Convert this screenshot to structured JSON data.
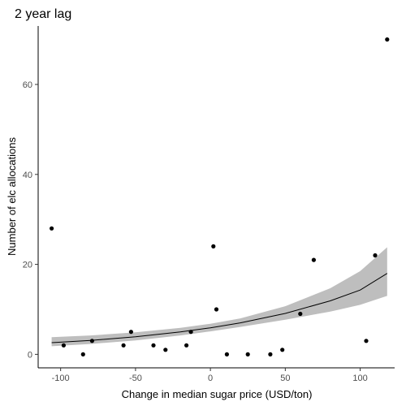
{
  "chart_data": {
    "type": "scatter",
    "title": "2 year lag",
    "xlabel": "Change in median sugar price (USD/ton)",
    "ylabel": "Number of elc allocations",
    "xlim": [
      -115,
      123
    ],
    "ylim": [
      -3,
      73
    ],
    "x_ticks": [
      -100,
      -50,
      0,
      50,
      100
    ],
    "y_ticks": [
      0,
      20,
      40,
      60
    ],
    "x_tick_labels": [
      "-100",
      "-50",
      "0",
      "50",
      "100"
    ],
    "y_tick_labels": [
      "0",
      "20",
      "40",
      "60"
    ],
    "grid": false,
    "legend": "none",
    "points": [
      {
        "x": -106,
        "y": 28
      },
      {
        "x": -98,
        "y": 2
      },
      {
        "x": -85,
        "y": 0
      },
      {
        "x": -79,
        "y": 3
      },
      {
        "x": -58,
        "y": 2
      },
      {
        "x": -53,
        "y": 5
      },
      {
        "x": -38,
        "y": 2
      },
      {
        "x": -30,
        "y": 1
      },
      {
        "x": -16,
        "y": 2
      },
      {
        "x": -13,
        "y": 5
      },
      {
        "x": 2,
        "y": 24
      },
      {
        "x": 4,
        "y": 10
      },
      {
        "x": 11,
        "y": 0
      },
      {
        "x": 25,
        "y": 0
      },
      {
        "x": 40,
        "y": 0
      },
      {
        "x": 48,
        "y": 1
      },
      {
        "x": 60,
        "y": 9
      },
      {
        "x": 69,
        "y": 21
      },
      {
        "x": 104,
        "y": 3
      },
      {
        "x": 110,
        "y": 22
      },
      {
        "x": 118,
        "y": 70
      }
    ],
    "fit": {
      "x": [
        -106,
        -80,
        -50,
        -20,
        0,
        20,
        50,
        80,
        100,
        118
      ],
      "y": [
        2.6,
        3.1,
        3.9,
        5.0,
        5.9,
        7.0,
        9.1,
        11.9,
        14.3,
        18.0
      ],
      "lower": [
        1.8,
        2.3,
        3.1,
        4.2,
        5.1,
        6.1,
        7.7,
        9.5,
        11.0,
        13.0
      ],
      "upper": [
        3.8,
        4.2,
        4.9,
        5.9,
        6.8,
        8.0,
        10.7,
        14.7,
        18.5,
        23.8
      ]
    },
    "colors": {
      "points": "#000000",
      "fit_line": "#000000",
      "ribbon": "#bebebe"
    }
  }
}
